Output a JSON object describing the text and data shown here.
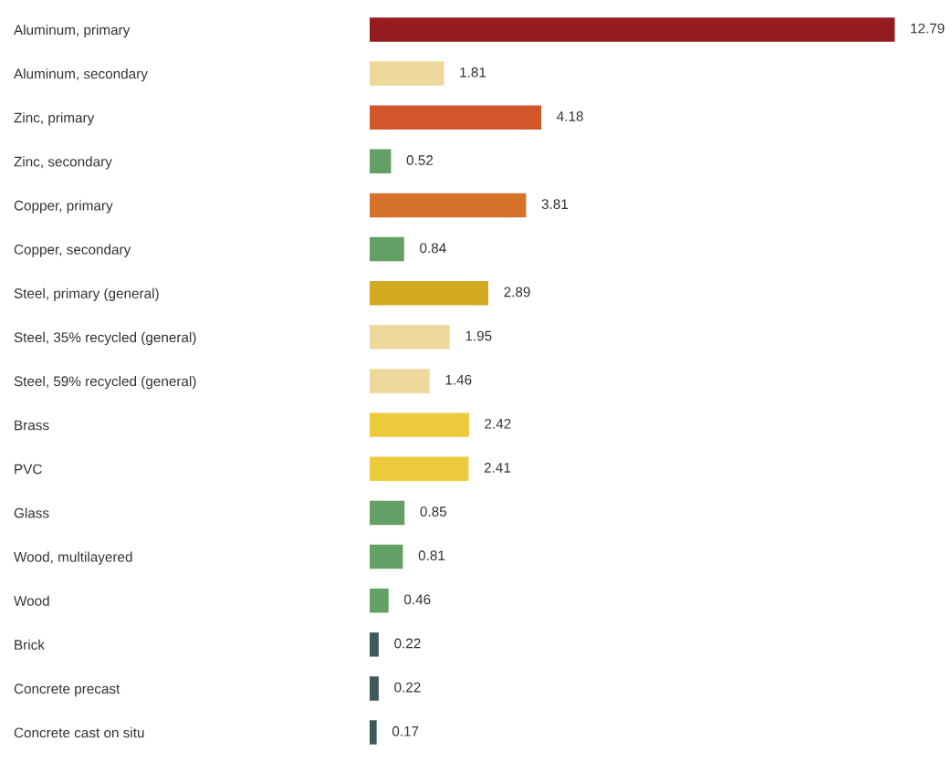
{
  "chart_data": {
    "type": "bar",
    "orientation": "horizontal",
    "data_labels": true,
    "grid": false,
    "legend": false,
    "tick_labels": "y",
    "categories": [
      "Aluminum, primary",
      "Aluminum, secondary",
      "Zinc, primary",
      "Zinc, secondary",
      "Copper, primary",
      "Copper, secondary",
      "Steel, primary (general)",
      "Steel, 35% recycled (general)",
      "Steel, 59% recycled (general)",
      "Brass",
      "PVC",
      "Glass",
      "Wood, multilayered",
      "Wood",
      "Brick",
      "Concrete precast",
      "Concrete cast on situ"
    ],
    "values": [
      12.79,
      1.81,
      4.18,
      0.52,
      3.81,
      0.84,
      2.89,
      1.95,
      1.46,
      2.42,
      2.41,
      0.85,
      0.81,
      0.46,
      0.22,
      0.22,
      0.17
    ],
    "colors": [
      "#951b1e",
      "#ecd89a",
      "#d2562a",
      "#62a065",
      "#d4722a",
      "#62a065",
      "#d3ab22",
      "#ecd89a",
      "#ecd89a",
      "#edc93c",
      "#edc93c",
      "#62a065",
      "#62a065",
      "#62a065",
      "#3d5a5a",
      "#3d5a5a",
      "#3d5a5a"
    ]
  }
}
